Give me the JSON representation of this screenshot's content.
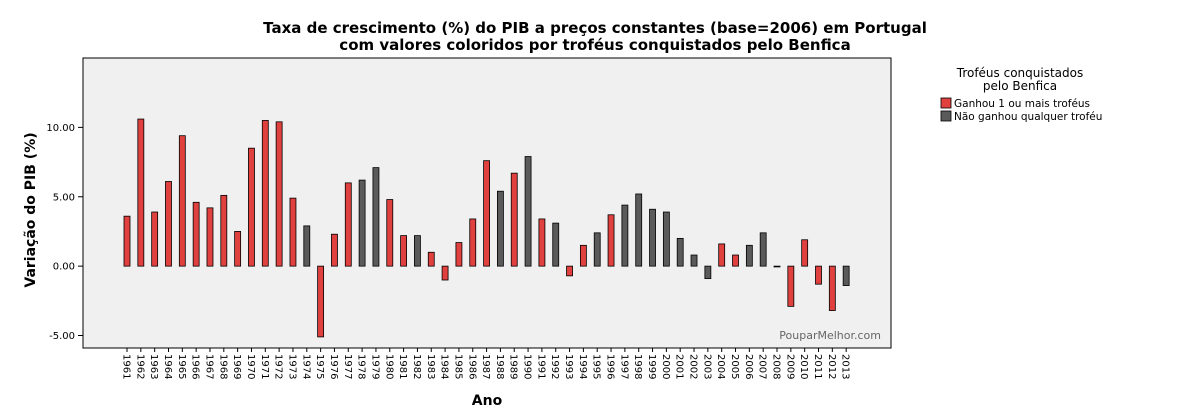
{
  "chart_data": {
    "type": "bar",
    "title_lines": [
      "Taxa de crescimento (%) do PIB a preços constantes (base=2006) em Portugal",
      "com valores coloridos por troféus conquistados pelo Benfica"
    ],
    "xlabel": "Ano",
    "ylabel": "Variação do PIB (%)",
    "ylim": [
      -5.9,
      15.0
    ],
    "yticks": [
      -5,
      0,
      5,
      10
    ],
    "ytick_labels": [
      "-5.00",
      "0.00",
      "5.00",
      "10.00"
    ],
    "grid": false,
    "legend": {
      "title_lines": [
        "Troféus conquistados",
        "pelo Benfica"
      ],
      "placement": "right",
      "entries": [
        {
          "label": "Ganhou 1 ou mais troféus",
          "color": "#e0413f",
          "key": "won"
        },
        {
          "label": "Não ganhou qualquer troféu",
          "color": "#5a5a5a",
          "key": "none"
        }
      ]
    },
    "categories": [
      "1961",
      "1962",
      "1963",
      "1964",
      "1965",
      "1966",
      "1967",
      "1968",
      "1969",
      "1970",
      "1971",
      "1972",
      "1973",
      "1974",
      "1975",
      "1976",
      "1977",
      "1978",
      "1979",
      "1980",
      "1981",
      "1982",
      "1983",
      "1984",
      "1985",
      "1986",
      "1987",
      "1988",
      "1989",
      "1990",
      "1991",
      "1992",
      "1993",
      "1994",
      "1995",
      "1996",
      "1997",
      "1998",
      "1999",
      "2000",
      "2001",
      "2002",
      "2003",
      "2004",
      "2005",
      "2006",
      "2007",
      "2008",
      "2009",
      "2010",
      "2011",
      "2012",
      "2013"
    ],
    "values": [
      3.6,
      10.6,
      3.9,
      6.1,
      9.4,
      4.6,
      4.2,
      5.1,
      2.5,
      8.5,
      10.5,
      10.4,
      4.9,
      2.9,
      -5.1,
      2.3,
      6.0,
      6.2,
      7.1,
      4.8,
      2.2,
      2.2,
      1.0,
      -1.0,
      1.7,
      3.4,
      7.6,
      5.4,
      6.7,
      7.9,
      3.4,
      3.1,
      -0.7,
      1.5,
      2.4,
      3.7,
      4.4,
      5.2,
      4.1,
      3.9,
      2.0,
      0.8,
      -0.9,
      1.6,
      0.8,
      1.5,
      2.4,
      0.0,
      -2.9,
      1.9,
      -1.3,
      -3.2,
      -1.4
    ],
    "trophy_group": [
      "won",
      "won",
      "won",
      "won",
      "won",
      "won",
      "won",
      "won",
      "won",
      "won",
      "won",
      "won",
      "won",
      "none",
      "won",
      "won",
      "won",
      "none",
      "none",
      "won",
      "won",
      "none",
      "won",
      "won",
      "won",
      "won",
      "won",
      "none",
      "won",
      "none",
      "won",
      "none",
      "won",
      "won",
      "none",
      "won",
      "none",
      "none",
      "none",
      "none",
      "none",
      "none",
      "none",
      "won",
      "won",
      "none",
      "none",
      "none",
      "won",
      "won",
      "won",
      "won",
      "none"
    ]
  },
  "watermark": "PouparMelhor.com"
}
